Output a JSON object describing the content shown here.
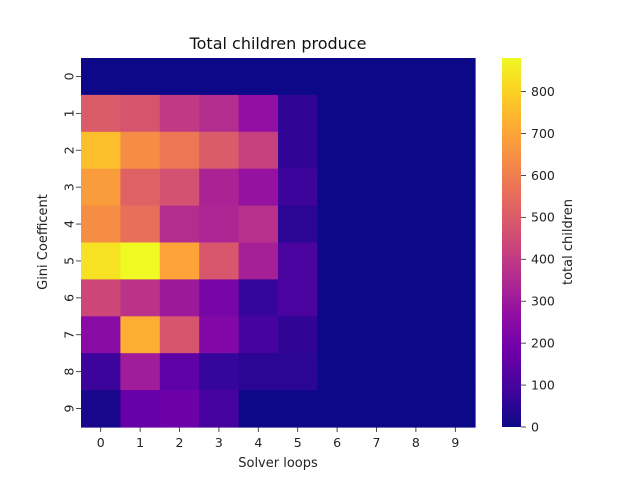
{
  "chart_data": {
    "type": "heatmap",
    "title": "Total children produce",
    "xlabel": "Solver loops",
    "ylabel": "Gini Coefficent",
    "x_categories": [
      "0",
      "1",
      "2",
      "3",
      "4",
      "5",
      "6",
      "7",
      "8",
      "9"
    ],
    "y_categories": [
      "0",
      "1",
      "2",
      "3",
      "4",
      "5",
      "6",
      "7",
      "8",
      "9"
    ],
    "values": [
      [
        0,
        0,
        0,
        0,
        0,
        0,
        0,
        0,
        0,
        0
      ],
      [
        500,
        480,
        400,
        360,
        270,
        60,
        0,
        0,
        0,
        0
      ],
      [
        760,
        640,
        580,
        500,
        420,
        60,
        0,
        0,
        0,
        0
      ],
      [
        680,
        520,
        470,
        330,
        280,
        80,
        0,
        0,
        0,
        0
      ],
      [
        640,
        560,
        360,
        340,
        370,
        50,
        0,
        0,
        0,
        0
      ],
      [
        830,
        880,
        700,
        490,
        320,
        110,
        0,
        0,
        0,
        0
      ],
      [
        440,
        380,
        300,
        210,
        70,
        110,
        0,
        0,
        0,
        0
      ],
      [
        250,
        720,
        480,
        230,
        100,
        60,
        0,
        0,
        0,
        0
      ],
      [
        80,
        310,
        150,
        70,
        50,
        50,
        0,
        0,
        0,
        0
      ],
      [
        20,
        170,
        180,
        100,
        0,
        0,
        0,
        0,
        0,
        0
      ]
    ],
    "colorbar": {
      "label": "total children",
      "range": [
        0,
        880
      ],
      "ticks": [
        "0",
        "100",
        "200",
        "300",
        "400",
        "500",
        "600",
        "700",
        "800"
      ],
      "colormap": "plasma"
    }
  }
}
